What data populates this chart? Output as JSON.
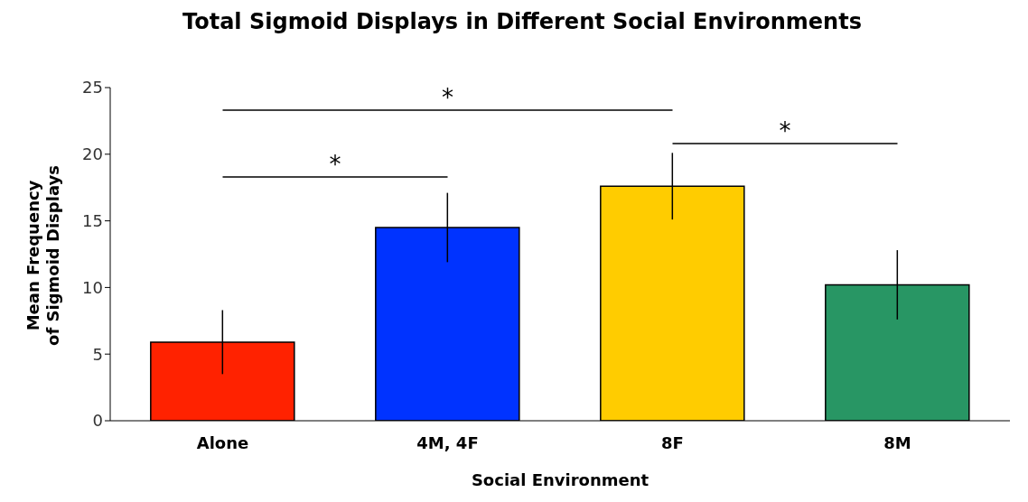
{
  "chart_data": {
    "type": "bar",
    "title": "Total Sigmoid Displays in Different Social Environments",
    "xlabel": "Social Environment",
    "ylabel": "Mean Frequency\nof Sigmoid Displays",
    "categories": [
      "Alone",
      "4M, 4F",
      "8F",
      "8M"
    ],
    "values": [
      5.9,
      14.5,
      17.6,
      10.2
    ],
    "errors": [
      2.4,
      2.6,
      2.5,
      2.6
    ],
    "colors": [
      "#ff2200",
      "#0033ff",
      "#ffcc00",
      "#289664"
    ],
    "ylim": [
      0,
      25
    ],
    "yticks": [
      0,
      5,
      10,
      15,
      20,
      25
    ],
    "annotations": [
      "*",
      "*",
      "*"
    ]
  }
}
